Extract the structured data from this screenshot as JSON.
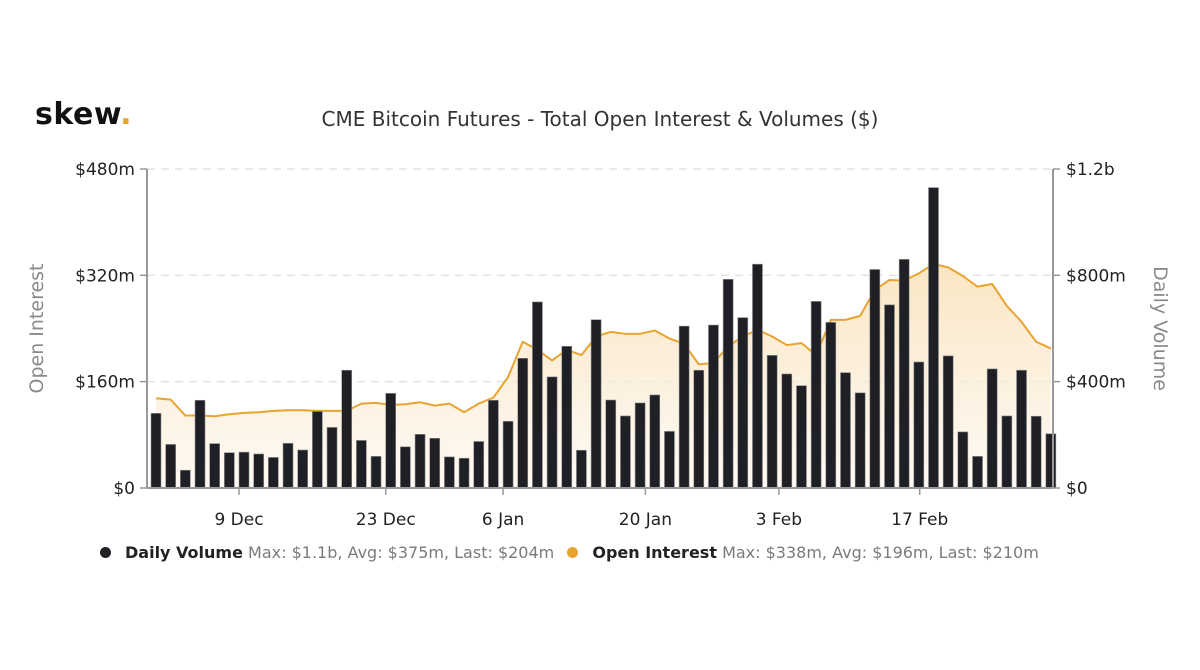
{
  "brand": {
    "name": "skew",
    "dot": ".",
    "accent": "#e9a430"
  },
  "chart_data": {
    "type": "bar+area",
    "title": "CME Bitcoin Futures - Total Open Interest & Volumes ($)",
    "xlabel": "",
    "x_ticks": [
      {
        "label": "9 Dec",
        "index": 6
      },
      {
        "label": "23 Dec",
        "index": 16
      },
      {
        "label": "6 Jan",
        "index": 24
      },
      {
        "label": "20 Jan",
        "index": 33.7
      },
      {
        "label": "3 Feb",
        "index": 42.8
      },
      {
        "label": "17 Feb",
        "index": 52.4
      }
    ],
    "y_left": {
      "label": "Open Interest",
      "range": [
        0,
        480
      ],
      "unit": "m",
      "ticks": [
        {
          "value": 0,
          "label": "$0"
        },
        {
          "value": 160,
          "label": "$160m"
        },
        {
          "value": 320,
          "label": "$320m"
        },
        {
          "value": 480,
          "label": "$480m"
        }
      ]
    },
    "y_right": {
      "label": "Daily Volume",
      "range": [
        0,
        1200
      ],
      "unit": "m",
      "ticks": [
        {
          "value": 0,
          "label": "$0"
        },
        {
          "value": 400,
          "label": "$400m"
        },
        {
          "value": 800,
          "label": "$800m"
        },
        {
          "value": 1200,
          "label": "$1.2b"
        }
      ]
    },
    "grid": true,
    "legend_position": "bottom",
    "series": [
      {
        "name": "Daily Volume",
        "type": "bar",
        "axis": "right",
        "color": "#1f2026",
        "stats": "Max: $1.1b, Avg: $375m, Last: $204m",
        "values": [
          281,
          164,
          67,
          330,
          167,
          133,
          135,
          128,
          115,
          168,
          143,
          288,
          228,
          443,
          179,
          119,
          356,
          155,
          202,
          187,
          117,
          112,
          175,
          330,
          251,
          488,
          700,
          418,
          533,
          142,
          633,
          331,
          271,
          320,
          350,
          213,
          609,
          443,
          613,
          785,
          641,
          842,
          499,
          429,
          385,
          702,
          623,
          434,
          358,
          822,
          689,
          860,
          474,
          1130,
          497,
          211,
          119,
          448,
          271,
          443,
          270,
          204
        ]
      },
      {
        "name": "Open Interest",
        "type": "area",
        "axis": "left",
        "color": "#e9a430",
        "stats": "Max: $338m, Avg: $196m, Last: $210m",
        "values": [
          135,
          133,
          109,
          109,
          108,
          111,
          113,
          114,
          116,
          117,
          117,
          116,
          116,
          116,
          127,
          128,
          125,
          126,
          129,
          124,
          127,
          114,
          127,
          136,
          167,
          220,
          208,
          192,
          208,
          200,
          228,
          235,
          232,
          232,
          237,
          225,
          217,
          186,
          188,
          213,
          228,
          238,
          228,
          215,
          218,
          200,
          253,
          253,
          259,
          298,
          313,
          312,
          323,
          337,
          332,
          319,
          303,
          307,
          274,
          250,
          220,
          210
        ]
      }
    ]
  }
}
